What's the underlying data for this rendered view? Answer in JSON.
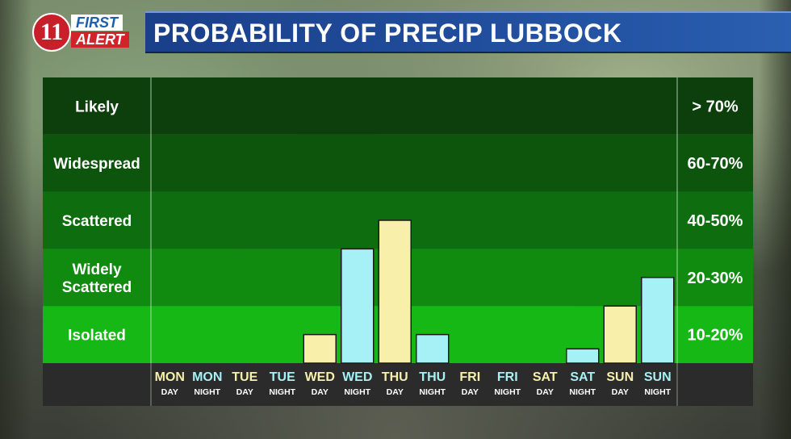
{
  "logo": {
    "badge": "11",
    "word1": "FIRST",
    "word2": "ALERT"
  },
  "header": {
    "title": "PROBABILITY OF PRECIP LUBBOCK"
  },
  "colors": {
    "title_bar": "#1f4c9a",
    "day_bar": "#f7efaa",
    "night_bar": "#a6f1f5",
    "bottom_strip": "#2b2b2b"
  },
  "chart_data": {
    "type": "bar",
    "title": "PROBABILITY OF PRECIP LUBBOCK",
    "bands": [
      {
        "label": "Likely",
        "range": "> 70%",
        "color": "#0c3f0c"
      },
      {
        "label": "Widespread",
        "range": "60-70%",
        "color": "#0d550d"
      },
      {
        "label": "Scattered",
        "range": "40-50%",
        "color": "#0e6d0e"
      },
      {
        "label": "Widely Scattered",
        "range": "20-30%",
        "color": "#108b10"
      },
      {
        "label": "Isolated",
        "range": "10-20%",
        "color": "#15b815"
      }
    ],
    "categories": [
      {
        "day": "MON",
        "period": "DAY"
      },
      {
        "day": "MON",
        "period": "NIGHT"
      },
      {
        "day": "TUE",
        "period": "DAY"
      },
      {
        "day": "TUE",
        "period": "NIGHT"
      },
      {
        "day": "WED",
        "period": "DAY"
      },
      {
        "day": "WED",
        "period": "NIGHT"
      },
      {
        "day": "THU",
        "period": "DAY"
      },
      {
        "day": "THU",
        "period": "NIGHT"
      },
      {
        "day": "FRI",
        "period": "DAY"
      },
      {
        "day": "FRI",
        "period": "NIGHT"
      },
      {
        "day": "SAT",
        "period": "DAY"
      },
      {
        "day": "SAT",
        "period": "NIGHT"
      },
      {
        "day": "SUN",
        "period": "DAY"
      },
      {
        "day": "SUN",
        "period": "NIGHT"
      }
    ],
    "values_band_units": [
      0,
      0,
      0,
      0,
      0.5,
      2.0,
      2.5,
      0.5,
      0,
      0,
      0,
      0.25,
      1.0,
      1.5
    ],
    "ylim": [
      0,
      5
    ],
    "grid": false,
    "legend": "none"
  }
}
